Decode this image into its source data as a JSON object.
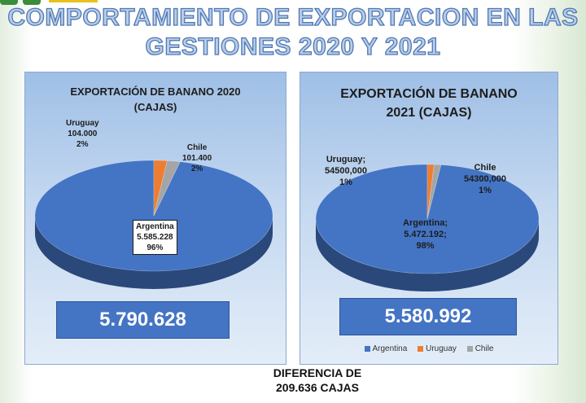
{
  "title": {
    "line1": "COMPORTAMIENTO DE EXPORTACION EN LAS",
    "line2": "GESTIONES 2020 Y 2021"
  },
  "chart_data": [
    {
      "type": "pie",
      "title_line1": "EXPORTACIÓN DE BANANO 2020",
      "title_line2": "(CAJAS)",
      "slices": [
        {
          "name": "Argentina",
          "value": 5585228,
          "value_label": "5.585.228",
          "percent_label": "96%",
          "color": "#4474c4"
        },
        {
          "name": "Uruguay",
          "value": 104000,
          "value_label": "104.000",
          "percent_label": "2%",
          "color": "#ed7d31"
        },
        {
          "name": "Chile",
          "value": 101400,
          "value_label": "101.400",
          "percent_label": "2%",
          "color": "#a5a5a5"
        }
      ],
      "total_label": "5.790.628"
    },
    {
      "type": "pie",
      "title_line1": "EXPORTACIÓN DE BANANO",
      "title_line2": "2021 (CAJAS)",
      "slices": [
        {
          "name": "Argentina",
          "value": 5472192,
          "value_label": "5.472.192;",
          "percent_label": "98%",
          "color": "#4474c4",
          "name_label": "Argentina;"
        },
        {
          "name": "Uruguay",
          "value": 54500,
          "value_label": "54500,000",
          "percent_label": "1%",
          "color": "#ed7d31",
          "name_label": "Uruguay;"
        },
        {
          "name": "Chile",
          "value": 54300,
          "value_label": "54300,000",
          "percent_label": "1%",
          "color": "#a5a5a5",
          "name_label": "Chile"
        }
      ],
      "total_label": "5.580.992",
      "legend": [
        "Argentina",
        "Uruguay",
        "Chile"
      ],
      "legend_placement": "bottom"
    }
  ],
  "difference": {
    "line1": "DIFERENCIA DE",
    "line2": "209.636 CAJAS"
  }
}
